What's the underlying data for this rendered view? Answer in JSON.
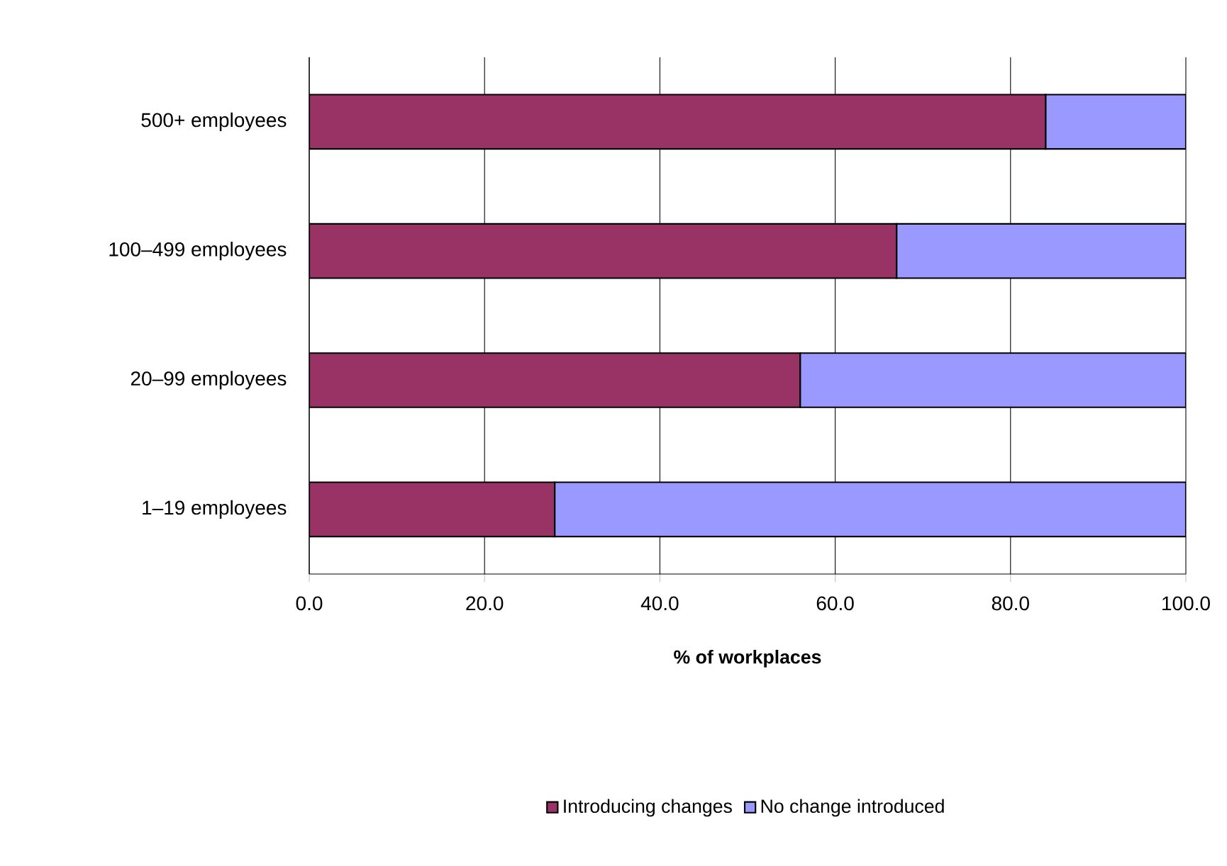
{
  "chart_data": {
    "type": "bar",
    "orientation": "horizontal",
    "stacked": true,
    "categories": [
      "500+ employees",
      "100–499 employees",
      "20–99 employees",
      "1–19 employees"
    ],
    "series": [
      {
        "name": "Introducing changes",
        "color": "#993366",
        "values": [
          84,
          67,
          56,
          28
        ]
      },
      {
        "name": "No change introduced",
        "color": "#9999ff",
        "values": [
          16,
          33,
          44,
          72
        ]
      }
    ],
    "xlabel": "% of workplaces",
    "xlim": [
      0,
      100
    ],
    "xticks": [
      {
        "value": 0,
        "label": "0.0"
      },
      {
        "value": 20,
        "label": "20.0"
      },
      {
        "value": 40,
        "label": "40.0"
      },
      {
        "value": 60,
        "label": "60.0"
      },
      {
        "value": 80,
        "label": "80.0"
      },
      {
        "value": 100,
        "label": "100.0"
      }
    ],
    "grid": "x",
    "legend": "bottom"
  }
}
